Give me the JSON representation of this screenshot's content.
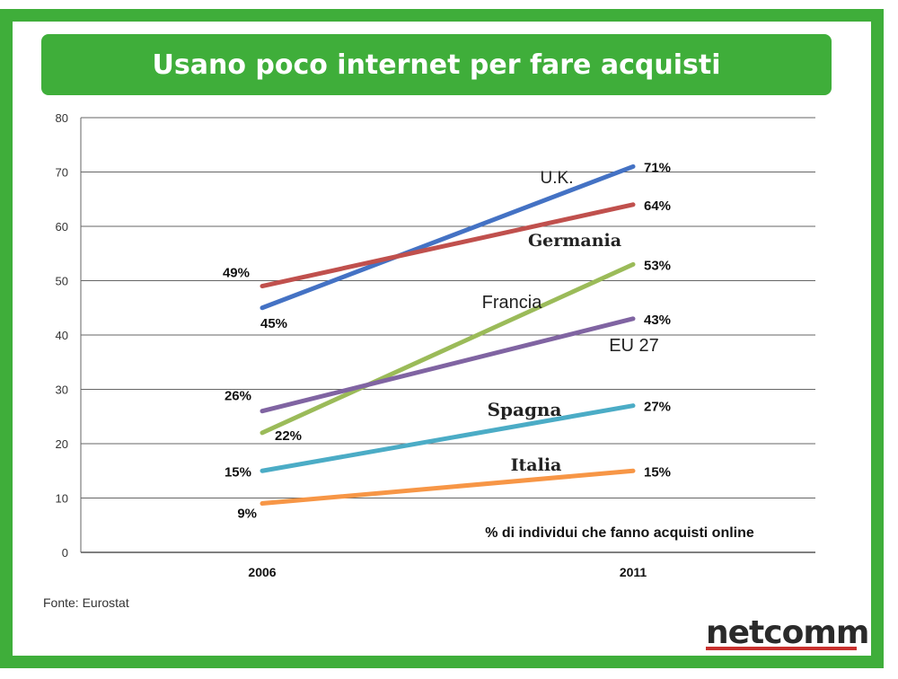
{
  "title": "Usano poco internet per fare acquisti",
  "source": "Fonte: Eurostat",
  "logo": "netcomm",
  "colors": {
    "frame": "#3fae3a",
    "title_text": "#ffffff"
  },
  "chart_data": {
    "type": "line",
    "title": "Usano poco internet per fare acquisti",
    "xlabel": "",
    "ylabel": "",
    "annotation": "% di individui che fanno acquisti online",
    "categories": [
      "2006",
      "2011"
    ],
    "ylim": [
      0,
      80
    ],
    "yticks": [
      0,
      10,
      20,
      30,
      40,
      50,
      60,
      70,
      80
    ],
    "grid": true,
    "series": [
      {
        "name": "U.K.",
        "values": [
          45,
          71
        ],
        "labels": [
          "45%",
          "71%"
        ],
        "color": "#4472c4"
      },
      {
        "name": "Germania",
        "values": [
          49,
          64
        ],
        "labels": [
          "49%",
          "64%"
        ],
        "color": "#c0504d"
      },
      {
        "name": "Francia",
        "values": [
          22,
          53
        ],
        "labels": [
          "22%",
          "53%"
        ],
        "color": "#9bbb59"
      },
      {
        "name": "EU 27",
        "values": [
          26,
          43
        ],
        "labels": [
          "26%",
          "43%"
        ],
        "color": "#8064a2"
      },
      {
        "name": "Spagna",
        "values": [
          15,
          27
        ],
        "labels": [
          "15%",
          "27%"
        ],
        "color": "#4bacc6"
      },
      {
        "name": "Italia",
        "values": [
          9,
          15
        ],
        "labels": [
          "9%",
          "15%"
        ],
        "color": "#f79646"
      }
    ]
  }
}
